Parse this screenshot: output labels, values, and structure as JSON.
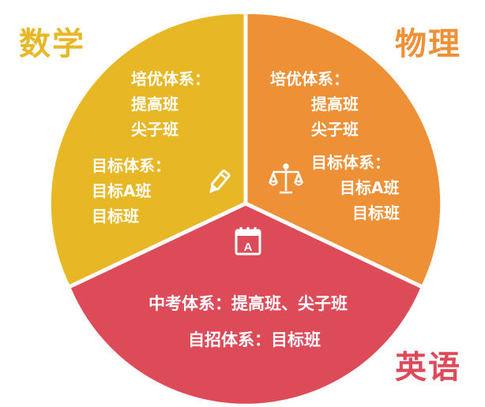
{
  "colors": {
    "math": "#e8b726",
    "physics": "#ee9035",
    "english": "#dd4a58",
    "math_label": "#e8b726",
    "physics_label": "#ee9035",
    "english_label": "#dd4a58",
    "divider": "#ffffff"
  },
  "icons": {
    "math": "pencil-icon",
    "physics": "scale-icon",
    "english": "calendar-a-icon"
  },
  "math": {
    "subject": "数学",
    "system_a_title": "培优体系：",
    "system_a_items": [
      "提高班",
      "尖子班"
    ],
    "system_b_title": "目标体系：",
    "system_b_items": [
      "目标A班",
      "目标班"
    ]
  },
  "physics": {
    "subject": "物理",
    "system_a_title": "培优体系：",
    "system_a_items": [
      "提高班",
      "尖子班"
    ],
    "system_b_title": "目标体系：",
    "system_b_items": [
      "目标A班",
      "目标班"
    ]
  },
  "english": {
    "subject": "英语",
    "line1": "中考体系：提高班、尖子班",
    "line2": "自招体系：目标班"
  }
}
